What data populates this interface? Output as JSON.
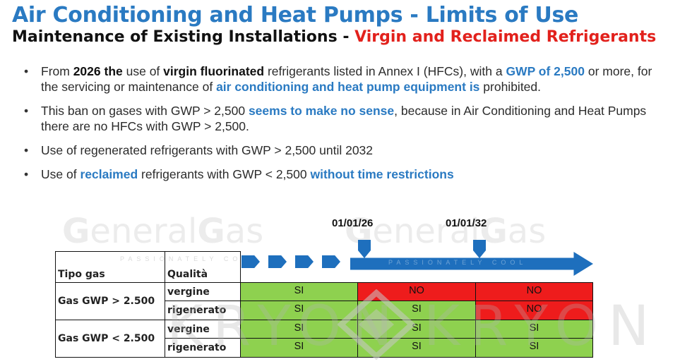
{
  "header": {
    "title": "Air Conditioning and Heat Pumps - Limits of Use",
    "subtitle_main": "Maintenance of Existing Installations - ",
    "subtitle_accent": "Virgin and Reclaimed Refrigerants"
  },
  "bullets": [
    {
      "p1": "From ",
      "p2": "2026 the",
      "p3": " use of ",
      "p4": "virgin fluorinated",
      "p5": " refrigerants listed in Annex I (HFCs), with a ",
      "p6": "GWP of 2,500",
      "p7": " or more, for the servicing or maintenance of ",
      "p8": "air conditioning and heat pump equipment is",
      "p9": " prohibited."
    },
    {
      "p1": "This ban on gases with GWP > 2,500 ",
      "p2": "seems to make no sense",
      "p3": ", because in Air Conditioning and Heat Pumps there are no HFCs with GWP > 2,500."
    },
    {
      "p1": "Use of regenerated refrigerants with GWP > 2,500 until 2032"
    },
    {
      "p1": "Use of ",
      "p2": "reclaimed",
      "p3": " refrigerants with GWP < 2,500 ",
      "p4": "without time restrictions"
    }
  ],
  "watermarks": {
    "brand_a1": "G",
    "brand_a2": "eneral",
    "brand_a3": "G",
    "brand_a4": "as",
    "tagline": "PASSIONATELY COOL",
    "brand2": "KRYON"
  },
  "timeline": {
    "date1": "01/01/26",
    "date2": "01/01/32",
    "color": "#1e6fbd"
  },
  "table": {
    "col_gas": "Tipo gas",
    "col_quality": "Qualità",
    "groups": [
      {
        "gas": "Gas GWP > 2.500",
        "rows": [
          {
            "quality": "vergine",
            "p1": "SI",
            "p2": "NO",
            "p3": "NO"
          },
          {
            "quality": "rigenerato",
            "p1": "SI",
            "p2": "SI",
            "p3": "NO"
          }
        ]
      },
      {
        "gas": "Gas GWP < 2.500",
        "rows": [
          {
            "quality": "vergine",
            "p1": "SI",
            "p2": "SI",
            "p3": "SI"
          },
          {
            "quality": "rigenerato",
            "p1": "SI",
            "p2": "SI",
            "p3": "SI"
          }
        ]
      }
    ],
    "colors": {
      "allowed": "#8ed14f",
      "banned": "#ee1c1c"
    }
  }
}
